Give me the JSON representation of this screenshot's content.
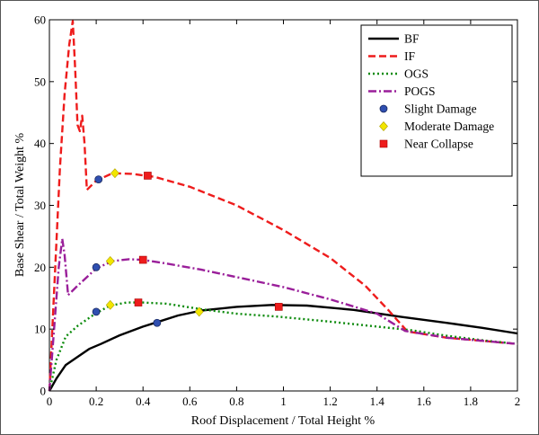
{
  "chart_data": {
    "type": "line",
    "xlabel": "Roof Displacement / Total Height %",
    "ylabel": "Base Shear / Total Weight %",
    "xlim": [
      0,
      2
    ],
    "ylim": [
      0,
      60
    ],
    "x_ticks": [
      "0",
      "0.2",
      "0.4",
      "0.6",
      "0.8",
      "1",
      "1.2",
      "1.4",
      "1.6",
      "1.8",
      "2"
    ],
    "y_ticks": [
      "0",
      "10",
      "20",
      "30",
      "40",
      "50",
      "60"
    ],
    "grid": false,
    "legend_position": "top-right",
    "series": [
      {
        "name": "BF",
        "color": "#000000",
        "dash": "solid",
        "points": [
          [
            0,
            0
          ],
          [
            0.03,
            2
          ],
          [
            0.07,
            4.2
          ],
          [
            0.12,
            5.5
          ],
          [
            0.17,
            6.8
          ],
          [
            0.22,
            7.6
          ],
          [
            0.3,
            9
          ],
          [
            0.4,
            10.4
          ],
          [
            0.45,
            11
          ],
          [
            0.55,
            12.2
          ],
          [
            0.65,
            13
          ],
          [
            0.8,
            13.6
          ],
          [
            0.95,
            13.9
          ],
          [
            1.1,
            13.8
          ],
          [
            1.3,
            13.1
          ],
          [
            1.5,
            12
          ],
          [
            1.7,
            11
          ],
          [
            1.85,
            10.2
          ],
          [
            2,
            9.3
          ]
        ]
      },
      {
        "name": "IF",
        "color": "#ee1c1c",
        "dash": "dashed",
        "points": [
          [
            0,
            0
          ],
          [
            0.01,
            8
          ],
          [
            0.03,
            24
          ],
          [
            0.045,
            36
          ],
          [
            0.065,
            48
          ],
          [
            0.085,
            56
          ],
          [
            0.1,
            59.8
          ],
          [
            0.11,
            52
          ],
          [
            0.12,
            43
          ],
          [
            0.13,
            42
          ],
          [
            0.14,
            44.5
          ],
          [
            0.15,
            40
          ],
          [
            0.16,
            32.5
          ],
          [
            0.2,
            34
          ],
          [
            0.27,
            35.2
          ],
          [
            0.35,
            35.1
          ],
          [
            0.45,
            34.6
          ],
          [
            0.6,
            33
          ],
          [
            0.8,
            30
          ],
          [
            1.0,
            26
          ],
          [
            1.2,
            21.5
          ],
          [
            1.35,
            17
          ],
          [
            1.45,
            13
          ],
          [
            1.53,
            9.6
          ],
          [
            1.7,
            8.6
          ],
          [
            1.85,
            8.1
          ],
          [
            2,
            7.6
          ]
        ]
      },
      {
        "name": "OGS",
        "color": "#0a8a0a",
        "dash": "dotted",
        "points": [
          [
            0,
            0
          ],
          [
            0.03,
            5
          ],
          [
            0.07,
            8.8
          ],
          [
            0.12,
            10.5
          ],
          [
            0.2,
            12.6
          ],
          [
            0.26,
            13.8
          ],
          [
            0.33,
            14.3
          ],
          [
            0.4,
            14.3
          ],
          [
            0.5,
            14.1
          ],
          [
            0.65,
            13.2
          ],
          [
            0.8,
            12.5
          ],
          [
            0.98,
            12
          ],
          [
            1.2,
            11.2
          ],
          [
            1.4,
            10.4
          ],
          [
            1.55,
            9.8
          ],
          [
            1.7,
            8.9
          ],
          [
            1.85,
            8.2
          ],
          [
            2,
            7.6
          ]
        ]
      },
      {
        "name": "POGS",
        "color": "#9a1f9a",
        "dash": "dashdot",
        "points": [
          [
            0,
            0
          ],
          [
            0.02,
            10
          ],
          [
            0.04,
            20
          ],
          [
            0.055,
            24.6
          ],
          [
            0.065,
            22
          ],
          [
            0.08,
            15.5
          ],
          [
            0.12,
            17
          ],
          [
            0.2,
            19.8
          ],
          [
            0.27,
            21
          ],
          [
            0.34,
            21.3
          ],
          [
            0.4,
            21.2
          ],
          [
            0.5,
            20.6
          ],
          [
            0.65,
            19.6
          ],
          [
            0.85,
            18
          ],
          [
            1.0,
            16.8
          ],
          [
            1.2,
            14.8
          ],
          [
            1.4,
            12.5
          ],
          [
            1.52,
            9.7
          ],
          [
            1.7,
            8.6
          ],
          [
            1.85,
            8.1
          ],
          [
            2,
            7.6
          ]
        ]
      }
    ],
    "damage_markers": [
      {
        "name": "Slight Damage",
        "shape": "circle",
        "color": "#2f4fb0",
        "points": [
          [
            0.21,
            34.2
          ],
          [
            0.2,
            20
          ],
          [
            0.2,
            12.8
          ],
          [
            0.46,
            11
          ]
        ]
      },
      {
        "name": "Moderate Damage",
        "shape": "diamond",
        "color": "#f2e600",
        "points": [
          [
            0.28,
            35.2
          ],
          [
            0.26,
            21
          ],
          [
            0.26,
            13.9
          ],
          [
            0.64,
            12.8
          ]
        ]
      },
      {
        "name": "Near Collapse",
        "shape": "square",
        "color": "#ee1c1c",
        "points": [
          [
            0.42,
            34.8
          ],
          [
            0.4,
            21.2
          ],
          [
            0.38,
            14.3
          ],
          [
            0.98,
            13.6
          ]
        ]
      }
    ]
  }
}
